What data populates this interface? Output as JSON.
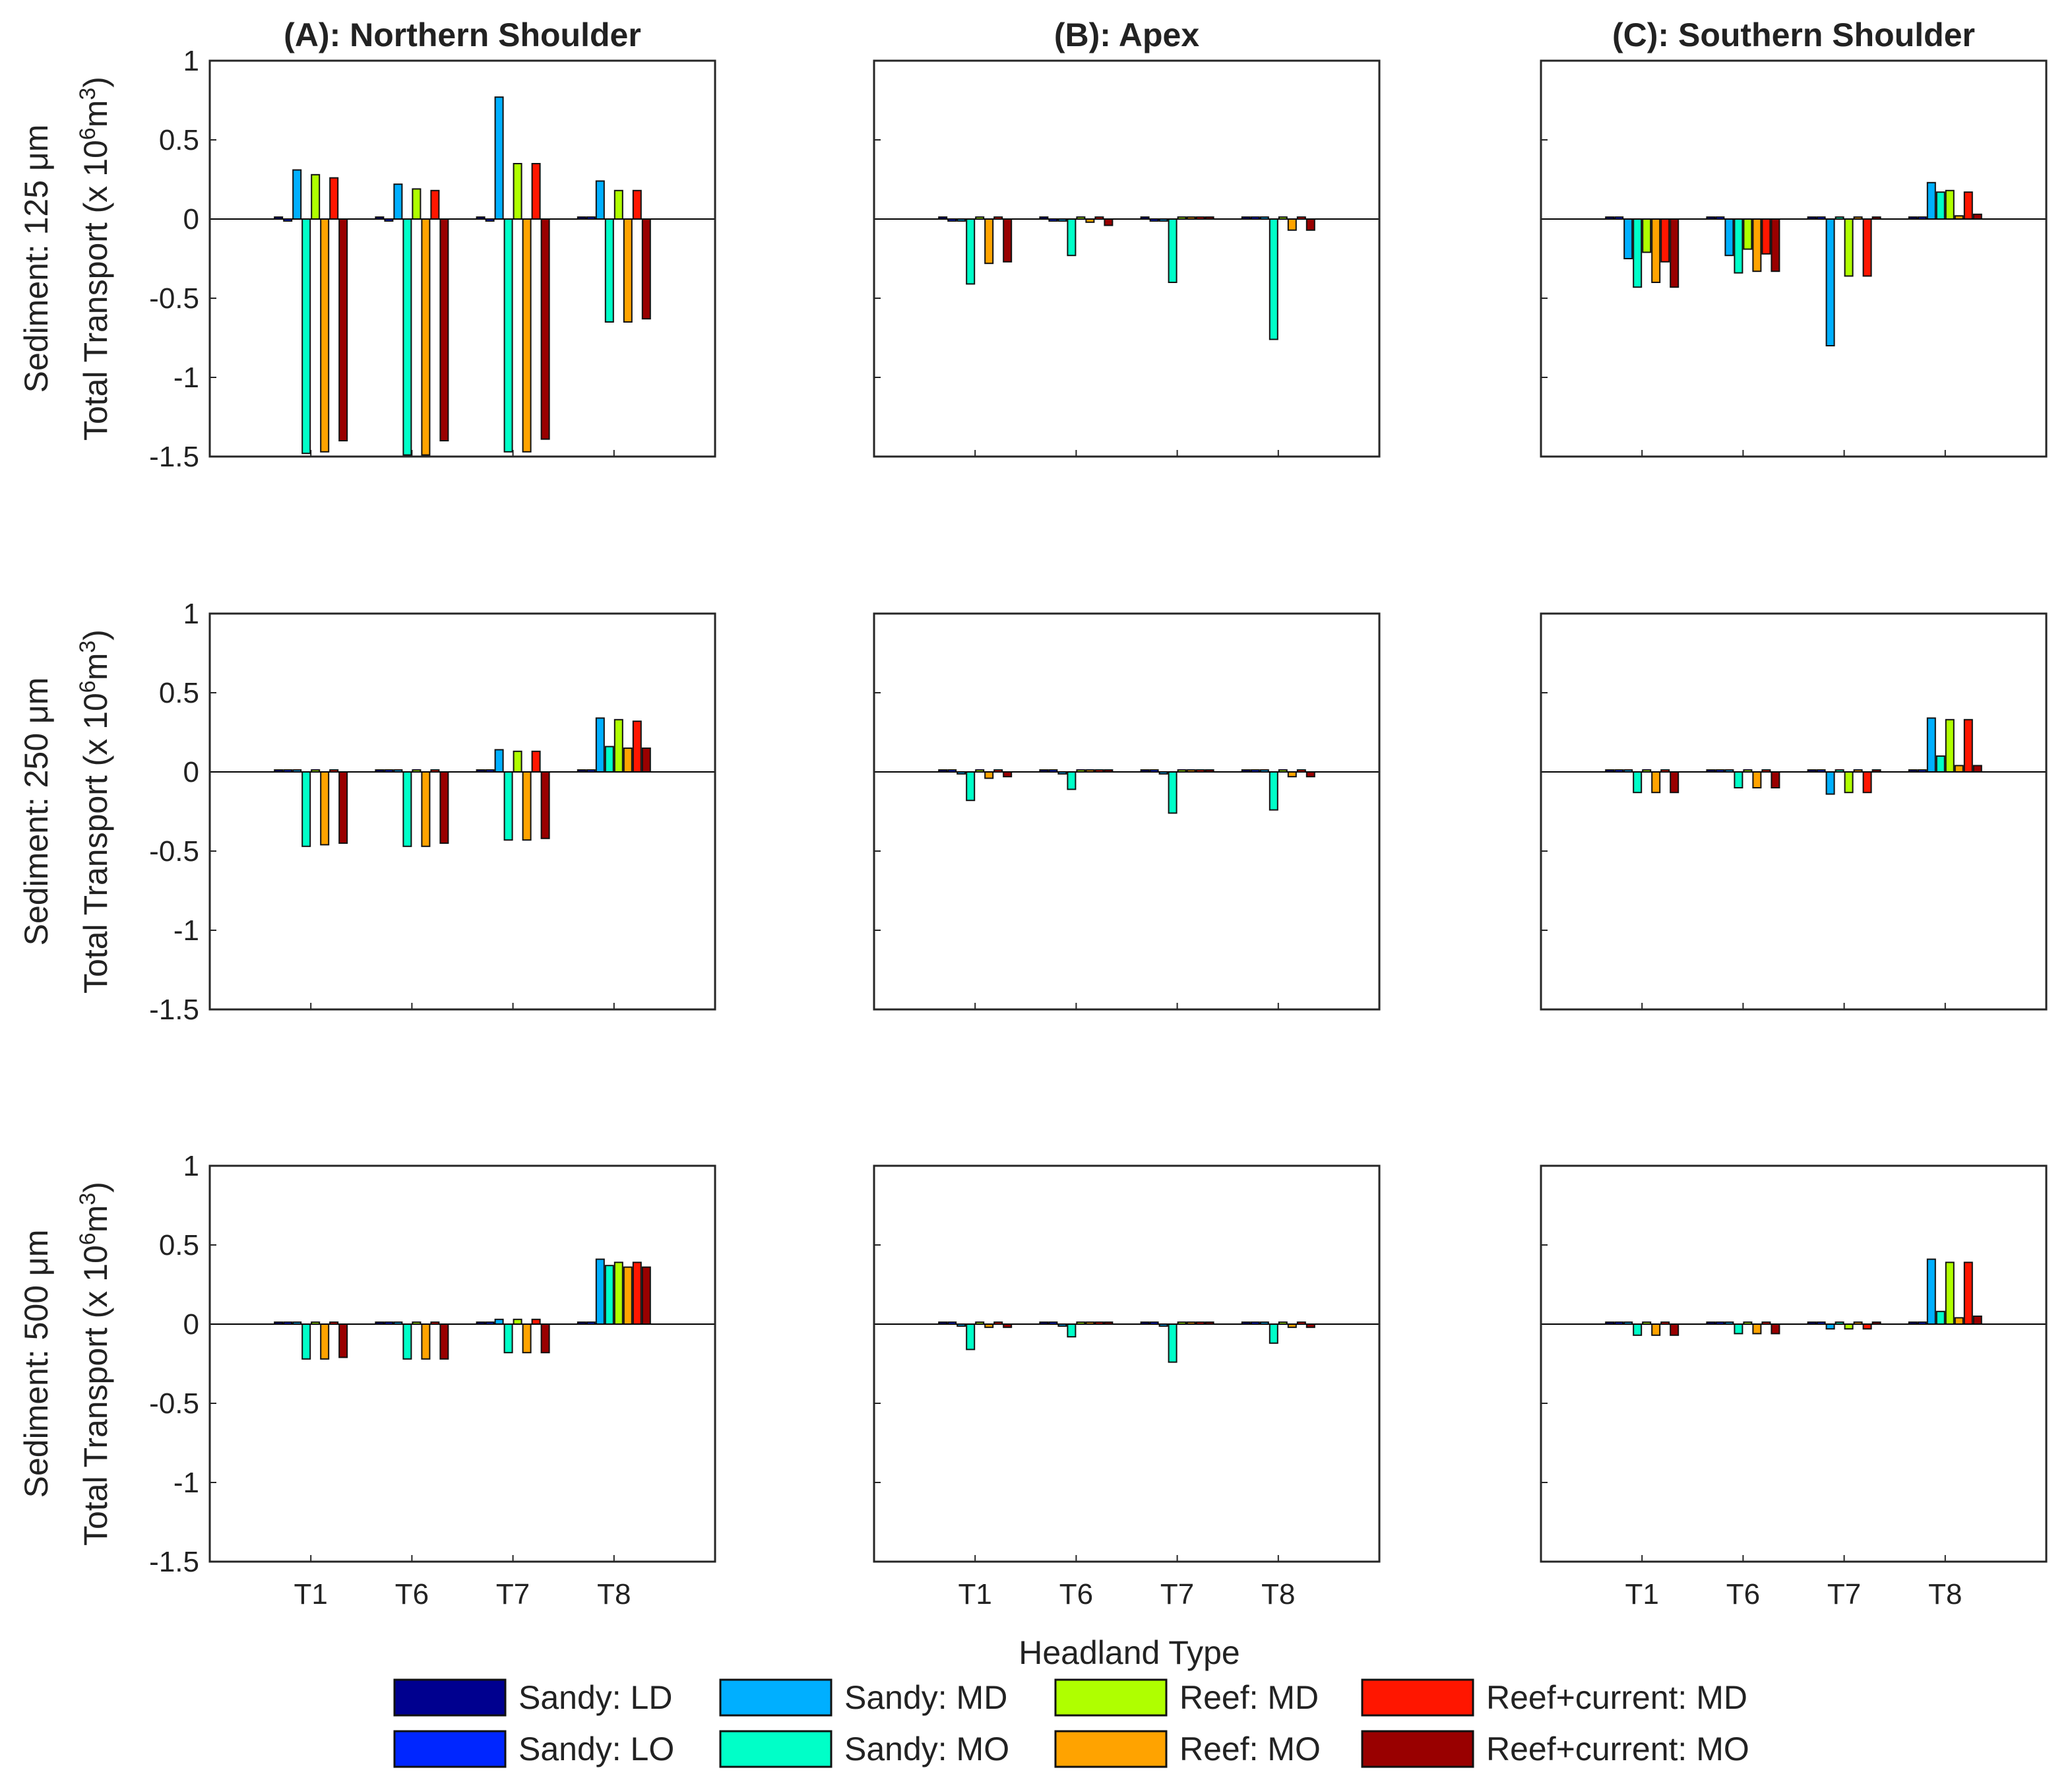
{
  "chart_data": {
    "type": "bar",
    "xlabel": "Headland Type",
    "categories": [
      "T1",
      "T6",
      "T7",
      "T8"
    ],
    "ylim": [
      -1.5,
      1
    ],
    "yticks": [
      1,
      0.5,
      0,
      -0.5,
      -1,
      -1.5
    ],
    "ytick_labels": [
      "1",
      "0.5",
      "0",
      "-0.5",
      "-1",
      "-1.5"
    ],
    "columns": [
      "(A): Northern Shoulder",
      "(B): Apex",
      "(C): Southern Shoulder"
    ],
    "ylabels": [
      {
        "line1": "Sediment: 125 μm",
        "line2": "Total Transport (x 10",
        "sup1": "6",
        "mid": "m",
        "sup2": "3",
        "end": ")"
      },
      {
        "line1": "Sediment: 250 μm",
        "line2": "Total Transport (x 10",
        "sup1": "6",
        "mid": "m",
        "sup2": "3",
        "end": ")"
      },
      {
        "line1": "Sediment: 500 μm",
        "line2": "Total Transport (x 10",
        "sup1": "6",
        "mid": "m",
        "sup2": "3",
        "end": ")"
      }
    ],
    "legend": [
      {
        "name": "Sandy: LD",
        "color": "#00008f"
      },
      {
        "name": "Sandy: MD",
        "color": "#00afff"
      },
      {
        "name": "Reef: MD",
        "color": "#afff00"
      },
      {
        "name": "Reef+current: MD",
        "color": "#ff1600"
      },
      {
        "name": "Sandy: LO",
        "color": "#0026ff"
      },
      {
        "name": "Sandy: MO",
        "color": "#00ffc8"
      },
      {
        "name": "Reef: MO",
        "color": "#ffa300"
      },
      {
        "name": "Reef+current: MO",
        "color": "#990000"
      }
    ],
    "series_order": [
      "Sandy: LD",
      "Sandy: LO",
      "Sandy: MD",
      "Sandy: MO",
      "Reef: MD",
      "Reef: MO",
      "Reef+current: MD",
      "Reef+current: MO"
    ],
    "panels": [
      {
        "row": 0,
        "col": 0,
        "values": [
          [
            0,
            -0.01,
            0.31,
            -1.48,
            0.28,
            -1.47,
            0.26,
            -1.4
          ],
          [
            0,
            -0.01,
            0.22,
            -1.49,
            0.19,
            -1.49,
            0.18,
            -1.4
          ],
          [
            0,
            -0.01,
            0.77,
            -1.47,
            0.35,
            -1.47,
            0.35,
            -1.39
          ],
          [
            0.01,
            0,
            0.24,
            -0.65,
            0.18,
            -0.65,
            0.18,
            -0.63
          ]
        ]
      },
      {
        "row": 0,
        "col": 1,
        "values": [
          [
            0,
            -0.01,
            -0.01,
            -0.41,
            0,
            -0.28,
            0,
            -0.27
          ],
          [
            0,
            -0.01,
            -0.01,
            -0.23,
            0,
            -0.02,
            0,
            -0.04
          ],
          [
            0,
            -0.01,
            -0.01,
            -0.4,
            0,
            0,
            0,
            0
          ],
          [
            0,
            0,
            0,
            -0.76,
            0,
            -0.07,
            0,
            -0.07
          ]
        ]
      },
      {
        "row": 0,
        "col": 2,
        "values": [
          [
            0,
            0,
            -0.25,
            -0.43,
            -0.21,
            -0.4,
            -0.27,
            -0.43
          ],
          [
            0,
            0,
            -0.23,
            -0.34,
            -0.19,
            -0.33,
            -0.22,
            -0.33
          ],
          [
            0,
            0,
            -0.8,
            0,
            -0.36,
            0,
            -0.36,
            0
          ],
          [
            0.01,
            0,
            0.23,
            0.17,
            0.18,
            0.02,
            0.17,
            0.03
          ]
        ]
      },
      {
        "row": 1,
        "col": 0,
        "values": [
          [
            0,
            0.01,
            0.01,
            -0.47,
            0.01,
            -0.46,
            0.01,
            -0.45
          ],
          [
            0,
            0.01,
            0.01,
            -0.47,
            0.01,
            -0.47,
            0.01,
            -0.45
          ],
          [
            0,
            0,
            0.14,
            -0.43,
            0.13,
            -0.43,
            0.13,
            -0.42
          ],
          [
            0.01,
            0,
            0.34,
            0.16,
            0.33,
            0.15,
            0.32,
            0.15
          ]
        ]
      },
      {
        "row": 1,
        "col": 1,
        "values": [
          [
            0,
            0,
            -0.01,
            -0.18,
            0,
            -0.04,
            0,
            -0.03
          ],
          [
            0,
            0,
            -0.01,
            -0.11,
            0,
            0,
            0,
            0
          ],
          [
            0,
            0,
            -0.01,
            -0.26,
            0,
            0,
            0,
            0
          ],
          [
            0,
            0,
            0,
            -0.24,
            0,
            -0.03,
            0,
            -0.03
          ]
        ]
      },
      {
        "row": 1,
        "col": 2,
        "values": [
          [
            0,
            0,
            0,
            -0.13,
            0,
            -0.13,
            0,
            -0.13
          ],
          [
            0,
            0,
            0,
            -0.1,
            0,
            -0.1,
            0,
            -0.1
          ],
          [
            0,
            0,
            -0.14,
            0,
            -0.13,
            0,
            -0.13,
            0
          ],
          [
            0.01,
            0,
            0.34,
            0.1,
            0.33,
            0.04,
            0.33,
            0.04
          ]
        ]
      },
      {
        "row": 2,
        "col": 0,
        "values": [
          [
            0,
            0,
            0,
            -0.22,
            0,
            -0.22,
            0,
            -0.21
          ],
          [
            0,
            0,
            0,
            -0.22,
            0,
            -0.22,
            0,
            -0.22
          ],
          [
            0,
            0,
            0.03,
            -0.18,
            0.03,
            -0.18,
            0.03,
            -0.18
          ],
          [
            0.01,
            0,
            0.41,
            0.37,
            0.39,
            0.36,
            0.39,
            0.36
          ]
        ]
      },
      {
        "row": 2,
        "col": 1,
        "values": [
          [
            0,
            0,
            -0.01,
            -0.16,
            0,
            -0.02,
            0,
            -0.02
          ],
          [
            0,
            0,
            -0.01,
            -0.08,
            0,
            0,
            0,
            0
          ],
          [
            0,
            0,
            -0.01,
            -0.24,
            0,
            0,
            0,
            0
          ],
          [
            0,
            0,
            0,
            -0.12,
            0,
            -0.02,
            0,
            -0.02
          ]
        ]
      },
      {
        "row": 2,
        "col": 2,
        "values": [
          [
            0,
            0,
            0,
            -0.07,
            0,
            -0.07,
            0,
            -0.07
          ],
          [
            0,
            0,
            0,
            -0.06,
            0,
            -0.06,
            0,
            -0.06
          ],
          [
            0,
            0,
            -0.03,
            0,
            -0.03,
            0,
            -0.03,
            0
          ],
          [
            0.01,
            0,
            0.41,
            0.08,
            0.39,
            0.04,
            0.39,
            0.05
          ]
        ]
      }
    ]
  }
}
